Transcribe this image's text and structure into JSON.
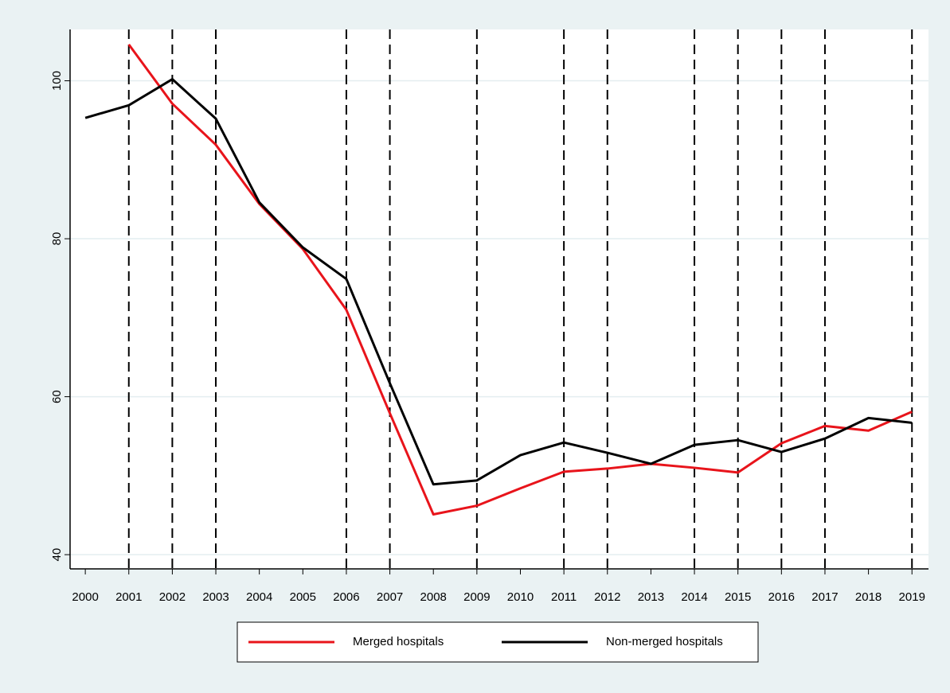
{
  "chart_data": {
    "type": "line",
    "x": [
      2000,
      2001,
      2002,
      2003,
      2004,
      2005,
      2006,
      2007,
      2008,
      2009,
      2010,
      2011,
      2012,
      2013,
      2014,
      2015,
      2016,
      2017,
      2018,
      2019
    ],
    "xlim": [
      1999.65,
      2019.38
    ],
    "xticks": [
      2000,
      2001,
      2002,
      2003,
      2004,
      2005,
      2006,
      2007,
      2008,
      2009,
      2010,
      2011,
      2012,
      2013,
      2014,
      2015,
      2016,
      2017,
      2018,
      2019
    ],
    "ylim": [
      38.2,
      106.5
    ],
    "yticks": [
      40,
      60,
      80,
      100
    ],
    "grid": true,
    "reference_lines": [
      2001,
      2002,
      2003,
      2006,
      2007,
      2009,
      2011,
      2012,
      2014,
      2015,
      2016,
      2017,
      2019
    ],
    "legend": "bottom",
    "series": [
      {
        "name": "Merged hospitals",
        "color": "#e8141b",
        "values": [
          null,
          104.6,
          97.1,
          91.9,
          84.4,
          78.7,
          71.0,
          57.9,
          45.1,
          46.2,
          48.4,
          50.5,
          50.9,
          51.5,
          51.0,
          50.4,
          54.1,
          56.3,
          55.7,
          58.1
        ]
      },
      {
        "name": "Non-merged hospitals",
        "color": "#000000",
        "values": [
          95.3,
          96.9,
          100.2,
          95.2,
          84.6,
          78.9,
          74.9,
          61.7,
          48.9,
          49.4,
          52.6,
          54.2,
          52.9,
          51.5,
          53.9,
          54.5,
          53.0,
          54.7,
          57.3,
          56.7
        ]
      }
    ]
  }
}
